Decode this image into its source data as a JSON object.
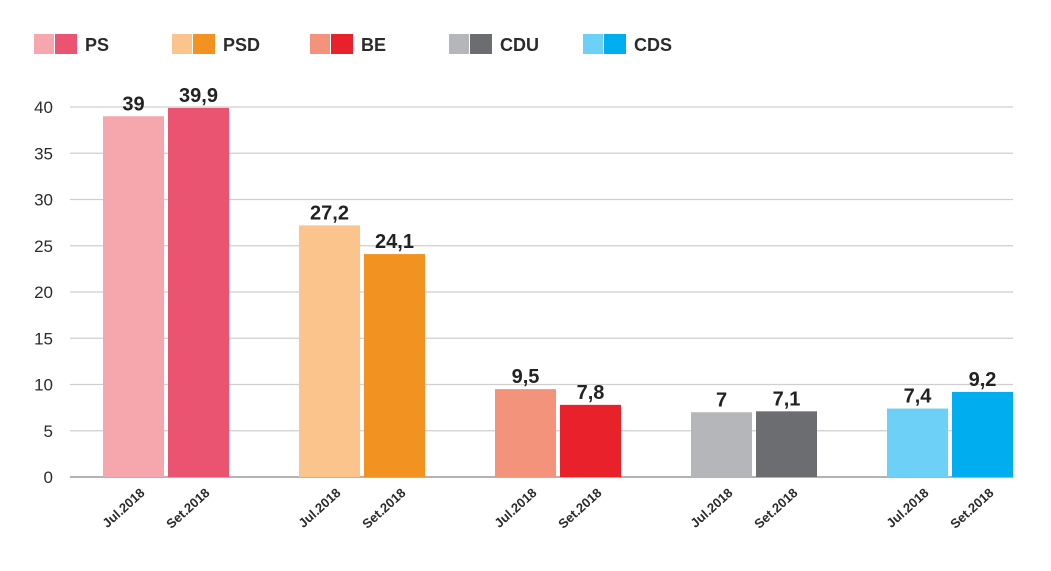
{
  "chart_data": {
    "type": "bar",
    "title": "",
    "xlabel": "",
    "ylabel": "",
    "ylim": [
      0,
      40
    ],
    "yticks": [
      0,
      5,
      10,
      15,
      20,
      25,
      30,
      35,
      40
    ],
    "grid": true,
    "legend_position": "top-left",
    "period_labels": [
      "Jul.2018",
      "Set.2018"
    ],
    "groups": [
      {
        "name": "PS",
        "values": [
          39,
          39.9
        ],
        "value_labels": [
          "39",
          "39,9"
        ],
        "colors": [
          "#f6a7ae",
          "#ea5470"
        ]
      },
      {
        "name": "PSD",
        "values": [
          27.2,
          24.1
        ],
        "value_labels": [
          "27,2",
          "24,1"
        ],
        "colors": [
          "#fbc48c",
          "#f29221"
        ]
      },
      {
        "name": "BE",
        "values": [
          9.5,
          7.8
        ],
        "value_labels": [
          "9,5",
          "7,8"
        ],
        "colors": [
          "#f4937c",
          "#e8212b"
        ]
      },
      {
        "name": "CDU",
        "values": [
          7,
          7.1
        ],
        "value_labels": [
          "7",
          "7,1"
        ],
        "colors": [
          "#b5b6ba",
          "#6c6d71"
        ]
      },
      {
        "name": "CDS",
        "values": [
          7.4,
          9.2
        ],
        "value_labels": [
          "7,4",
          "9,2"
        ],
        "colors": [
          "#6dd0f6",
          "#00adef"
        ]
      }
    ]
  }
}
